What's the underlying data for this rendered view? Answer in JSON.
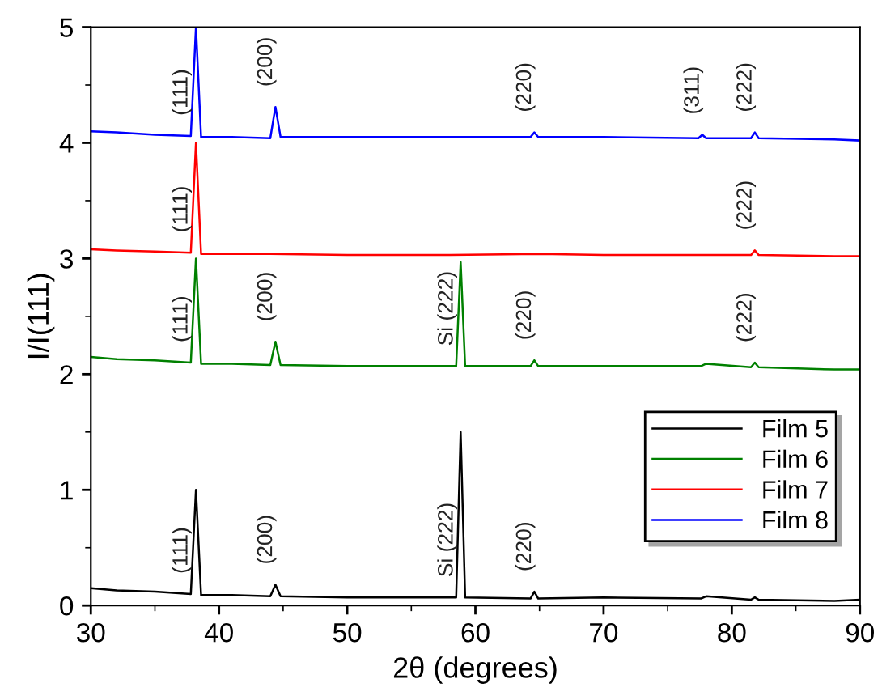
{
  "chart_data": {
    "type": "line",
    "xlabel": "2θ (degrees)",
    "ylabel": "I/I(111)",
    "xlim": [
      30,
      90
    ],
    "xticks": [
      30,
      40,
      50,
      60,
      70,
      80,
      90
    ],
    "ylim": [
      0,
      5
    ],
    "yticks": [
      0,
      1,
      2,
      3,
      4,
      5
    ],
    "grid": false,
    "legend": "bottom right",
    "marker": "none",
    "line_style": "solid",
    "series": [
      {
        "name": "Film 5",
        "color": "#000000",
        "x": [
          30,
          32,
          35,
          37.8,
          38.2,
          38.6,
          41,
          44.0,
          44.4,
          44.8,
          50,
          55,
          58.5,
          58.85,
          59.2,
          64.3,
          64.6,
          64.9,
          70,
          77.6,
          78,
          81.5,
          81.8,
          82.1,
          88,
          90
        ],
        "values": [
          0.15,
          0.13,
          0.12,
          0.1,
          1.0,
          0.09,
          0.09,
          0.08,
          0.18,
          0.08,
          0.07,
          0.07,
          0.07,
          1.5,
          0.07,
          0.06,
          0.12,
          0.06,
          0.07,
          0.06,
          0.08,
          0.05,
          0.07,
          0.05,
          0.04,
          0.05
        ]
      },
      {
        "name": "Film 6",
        "color": "#008000",
        "x": [
          30,
          32,
          35,
          37.8,
          38.2,
          38.6,
          41,
          44.0,
          44.4,
          44.8,
          50,
          55,
          58.5,
          58.85,
          59.2,
          64.3,
          64.6,
          64.9,
          70,
          77.6,
          78,
          81.5,
          81.8,
          82.1,
          88,
          90
        ],
        "values": [
          2.15,
          2.13,
          2.12,
          2.1,
          3.0,
          2.09,
          2.09,
          2.08,
          2.28,
          2.08,
          2.07,
          2.07,
          2.07,
          2.97,
          2.07,
          2.07,
          2.12,
          2.07,
          2.07,
          2.07,
          2.09,
          2.06,
          2.1,
          2.06,
          2.04,
          2.04
        ]
      },
      {
        "name": "Film 7",
        "color": "#ff0000",
        "x": [
          30,
          32,
          35,
          37.8,
          38.2,
          38.6,
          44,
          50,
          58,
          65,
          70,
          75,
          81.5,
          81.8,
          82.1,
          88,
          90
        ],
        "values": [
          3.08,
          3.07,
          3.06,
          3.05,
          4.0,
          3.04,
          3.04,
          3.03,
          3.03,
          3.04,
          3.03,
          3.03,
          3.03,
          3.07,
          3.03,
          3.02,
          3.02
        ]
      },
      {
        "name": "Film 8",
        "color": "#0000ff",
        "x": [
          30,
          32,
          35,
          37.8,
          38.2,
          38.6,
          41,
          44.0,
          44.4,
          44.8,
          50,
          55,
          64.3,
          64.6,
          64.9,
          70,
          77.4,
          77.7,
          78,
          81.5,
          81.8,
          82.1,
          88,
          90
        ],
        "values": [
          4.1,
          4.09,
          4.07,
          4.06,
          5.0,
          4.05,
          4.05,
          4.04,
          4.31,
          4.05,
          4.05,
          4.05,
          4.05,
          4.09,
          4.05,
          4.05,
          4.04,
          4.07,
          4.04,
          4.04,
          4.09,
          4.04,
          4.03,
          4.02
        ]
      }
    ],
    "annotations": [
      {
        "text": "(111)",
        "x": 37.8,
        "y": 0.1
      },
      {
        "text": "(200)",
        "x": 44.4,
        "y": 0.18
      },
      {
        "text": "Si (222)",
        "x": 58.5,
        "y": 0.07
      },
      {
        "text": "(220)",
        "x": 64.6,
        "y": 0.12
      },
      {
        "text": "(111)",
        "x": 37.8,
        "y": 2.1
      },
      {
        "text": "(200)",
        "x": 44.4,
        "y": 2.28
      },
      {
        "text": "Si (222)",
        "x": 58.5,
        "y": 2.07
      },
      {
        "text": "(220)",
        "x": 64.6,
        "y": 2.12
      },
      {
        "text": "(222)",
        "x": 81.8,
        "y": 2.1
      },
      {
        "text": "(111)",
        "x": 37.8,
        "y": 3.05
      },
      {
        "text": "(222)",
        "x": 81.8,
        "y": 3.07
      },
      {
        "text": "(111)",
        "x": 37.8,
        "y": 4.06
      },
      {
        "text": "(200)",
        "x": 44.4,
        "y": 4.31
      },
      {
        "text": "(220)",
        "x": 64.6,
        "y": 4.09
      },
      {
        "text": "(311)",
        "x": 77.7,
        "y": 4.07
      },
      {
        "text": "(222)",
        "x": 81.8,
        "y": 4.09
      }
    ]
  }
}
